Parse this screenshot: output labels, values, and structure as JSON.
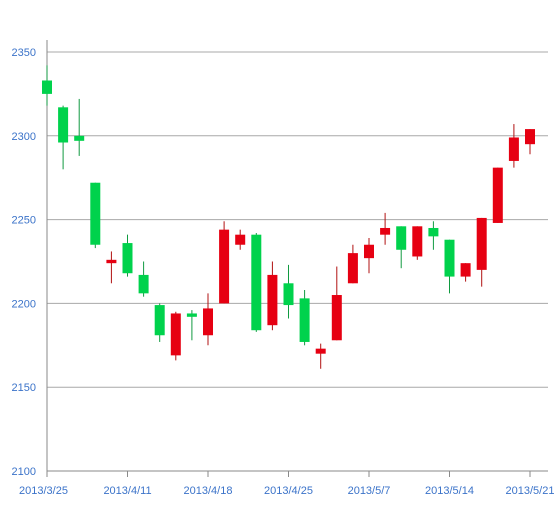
{
  "colors": {
    "up": "#e60012",
    "down": "#00d24c",
    "grid": "#a8a8a8",
    "axis": "#8a8a8a",
    "label": "#3b73c9",
    "wick_up": "#b01010",
    "wick_down": "#109a40"
  },
  "chart_data": {
    "type": "candlestick",
    "title": "",
    "xlabel": "",
    "ylabel": "",
    "ylim": [
      2100,
      2350
    ],
    "y_ticks": [
      "2100",
      "2150",
      "2200",
      "2250",
      "2300",
      "2350"
    ],
    "x_tick_labels": [
      {
        "label": "2013/3/25",
        "index": 0
      },
      {
        "label": "2013/4/11",
        "index": 5
      },
      {
        "label": "2013/4/18",
        "index": 10
      },
      {
        "label": "2013/4/25",
        "index": 15
      },
      {
        "label": "2013/5/7",
        "index": 20
      },
      {
        "label": "2013/5/14",
        "index": 25
      },
      {
        "label": "2013/5/21",
        "index": 30
      }
    ],
    "grid": true,
    "candles": [
      {
        "open": 2333,
        "close": 2325,
        "high": 2342,
        "low": 2318
      },
      {
        "open": 2317,
        "close": 2296,
        "high": 2318,
        "low": 2280
      },
      {
        "open": 2300,
        "close": 2297,
        "high": 2322,
        "low": 2288
      },
      {
        "open": 2272,
        "close": 2235,
        "high": 2272,
        "low": 2233
      },
      {
        "open": 2224,
        "close": 2226,
        "high": 2231,
        "low": 2212
      },
      {
        "open": 2236,
        "close": 2218,
        "high": 2241,
        "low": 2216
      },
      {
        "open": 2217,
        "close": 2206,
        "high": 2225,
        "low": 2204
      },
      {
        "open": 2199,
        "close": 2181,
        "high": 2200,
        "low": 2177
      },
      {
        "open": 2169,
        "close": 2194,
        "high": 2195,
        "low": 2166
      },
      {
        "open": 2194,
        "close": 2192,
        "high": 2196,
        "low": 2178
      },
      {
        "open": 2181,
        "close": 2197,
        "high": 2206,
        "low": 2175
      },
      {
        "open": 2200,
        "close": 2244,
        "high": 2249,
        "low": 2200
      },
      {
        "open": 2235,
        "close": 2241,
        "high": 2244,
        "low": 2232
      },
      {
        "open": 2241,
        "close": 2184,
        "high": 2242,
        "low": 2183
      },
      {
        "open": 2187,
        "close": 2217,
        "high": 2225,
        "low": 2184
      },
      {
        "open": 2212,
        "close": 2199,
        "high": 2223,
        "low": 2191
      },
      {
        "open": 2203,
        "close": 2177,
        "high": 2208,
        "low": 2175
      },
      {
        "open": 2170,
        "close": 2173,
        "high": 2176,
        "low": 2161
      },
      {
        "open": 2178,
        "close": 2205,
        "high": 2222,
        "low": 2178
      },
      {
        "open": 2212,
        "close": 2230,
        "high": 2235,
        "low": 2212
      },
      {
        "open": 2227,
        "close": 2235,
        "high": 2239,
        "low": 2218
      },
      {
        "open": 2241,
        "close": 2245,
        "high": 2254,
        "low": 2235
      },
      {
        "open": 2246,
        "close": 2232,
        "high": 2246,
        "low": 2221
      },
      {
        "open": 2228,
        "close": 2246,
        "high": 2246,
        "low": 2226
      },
      {
        "open": 2245,
        "close": 2240,
        "high": 2249,
        "low": 2232
      },
      {
        "open": 2238,
        "close": 2216,
        "high": 2238,
        "low": 2206
      },
      {
        "open": 2216,
        "close": 2224,
        "high": 2224,
        "low": 2213
      },
      {
        "open": 2220,
        "close": 2251,
        "high": 2251,
        "low": 2210
      },
      {
        "open": 2248,
        "close": 2281,
        "high": 2281,
        "low": 2248
      },
      {
        "open": 2285,
        "close": 2299,
        "high": 2307,
        "low": 2281
      },
      {
        "open": 2295,
        "close": 2304,
        "high": 2304,
        "low": 2289
      }
    ]
  }
}
